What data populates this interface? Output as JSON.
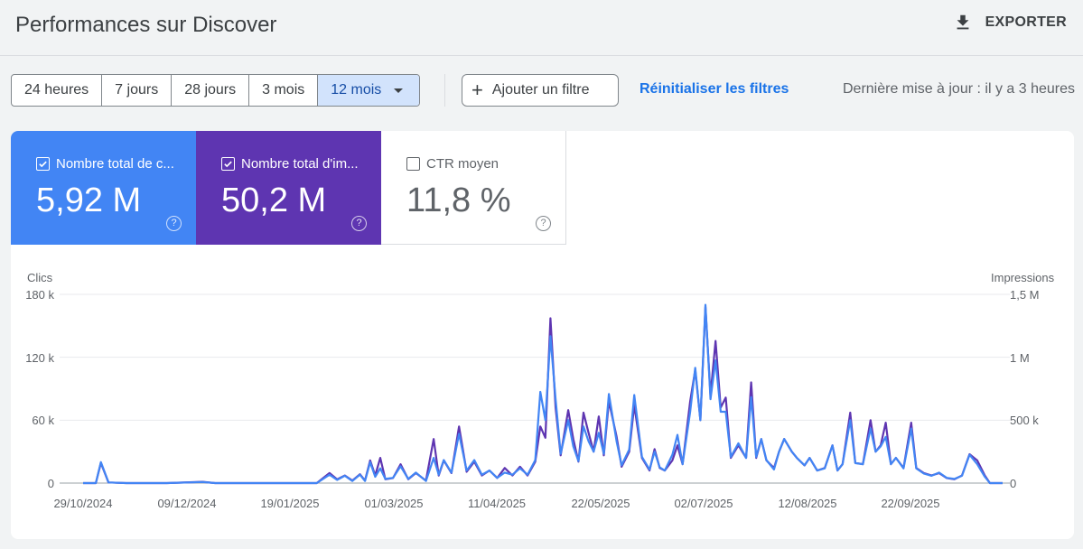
{
  "header": {
    "title": "Performances sur Discover",
    "export_label": "EXPORTER"
  },
  "toolbar": {
    "ranges": [
      "24 heures",
      "7 jours",
      "28 jours",
      "3 mois",
      "12 mois"
    ],
    "active_range": "12 mois",
    "add_filter": "Ajouter un filtre",
    "reset_filters": "Réinitialiser les filtres",
    "last_update": "Dernière mise à jour : il y a 3 heures"
  },
  "cards": {
    "clicks": {
      "label": "Nombre total de c...",
      "value": "5,92 M",
      "checked": true,
      "color": "#4285f4"
    },
    "impressions": {
      "label": "Nombre total d'im...",
      "value": "50,2 M",
      "checked": true,
      "color": "#5e35b1"
    },
    "ctr": {
      "label": "CTR moyen",
      "value": "11,8 %",
      "checked": false
    }
  },
  "chart_data": {
    "type": "line",
    "y_left_label": "Clics",
    "y_right_label": "Impressions",
    "y_left_ticks": [
      "180 k",
      "120 k",
      "60 k",
      "0"
    ],
    "y_right_ticks": [
      "1,5 M",
      "1 M",
      "500 k",
      "0"
    ],
    "y_left_range": [
      0,
      180000
    ],
    "y_right_range": [
      0,
      1500000
    ],
    "x_ticks": [
      "29/10/2024",
      "09/12/2024",
      "19/01/2025",
      "01/03/2025",
      "11/04/2025",
      "22/05/2025",
      "02/07/2025",
      "12/08/2025",
      "22/09/2025"
    ],
    "x_range": [
      "2024-10-29",
      "2025-10-26"
    ],
    "series": [
      {
        "name": "Impressions",
        "axis": "right",
        "color": "#5e35b1",
        "points": [
          [
            "2024-10-29",
            0
          ],
          [
            "2024-11-03",
            0
          ],
          [
            "2024-11-05",
            160000
          ],
          [
            "2024-11-08",
            5000
          ],
          [
            "2024-11-15",
            0
          ],
          [
            "2024-12-01",
            0
          ],
          [
            "2024-12-15",
            10000
          ],
          [
            "2024-12-20",
            0
          ],
          [
            "2025-01-10",
            0
          ],
          [
            "2025-01-29",
            0
          ],
          [
            "2025-02-03",
            80000
          ],
          [
            "2025-02-06",
            30000
          ],
          [
            "2025-02-09",
            60000
          ],
          [
            "2025-02-12",
            20000
          ],
          [
            "2025-02-15",
            70000
          ],
          [
            "2025-02-17",
            20000
          ],
          [
            "2025-02-19",
            180000
          ],
          [
            "2025-02-21",
            60000
          ],
          [
            "2025-02-23",
            200000
          ],
          [
            "2025-02-25",
            30000
          ],
          [
            "2025-02-28",
            40000
          ],
          [
            "2025-03-03",
            150000
          ],
          [
            "2025-03-06",
            30000
          ],
          [
            "2025-03-09",
            80000
          ],
          [
            "2025-03-13",
            20000
          ],
          [
            "2025-03-16",
            350000
          ],
          [
            "2025-03-18",
            60000
          ],
          [
            "2025-03-20",
            180000
          ],
          [
            "2025-03-23",
            80000
          ],
          [
            "2025-03-26",
            450000
          ],
          [
            "2025-03-29",
            90000
          ],
          [
            "2025-04-01",
            170000
          ],
          [
            "2025-04-04",
            60000
          ],
          [
            "2025-04-07",
            100000
          ],
          [
            "2025-04-10",
            40000
          ],
          [
            "2025-04-13",
            120000
          ],
          [
            "2025-04-16",
            60000
          ],
          [
            "2025-04-19",
            130000
          ],
          [
            "2025-04-22",
            60000
          ],
          [
            "2025-04-25",
            170000
          ],
          [
            "2025-04-27",
            450000
          ],
          [
            "2025-04-29",
            360000
          ],
          [
            "2025-05-01",
            1310000
          ],
          [
            "2025-05-03",
            600000
          ],
          [
            "2025-05-05",
            220000
          ],
          [
            "2025-05-08",
            580000
          ],
          [
            "2025-05-10",
            350000
          ],
          [
            "2025-05-12",
            170000
          ],
          [
            "2025-05-14",
            560000
          ],
          [
            "2025-05-16",
            400000
          ],
          [
            "2025-05-18",
            250000
          ],
          [
            "2025-05-20",
            530000
          ],
          [
            "2025-05-22",
            220000
          ],
          [
            "2025-05-24",
            650000
          ],
          [
            "2025-05-27",
            370000
          ],
          [
            "2025-05-29",
            130000
          ],
          [
            "2025-06-01",
            250000
          ],
          [
            "2025-06-03",
            620000
          ],
          [
            "2025-06-06",
            200000
          ],
          [
            "2025-06-09",
            100000
          ],
          [
            "2025-06-11",
            270000
          ],
          [
            "2025-06-13",
            120000
          ],
          [
            "2025-06-15",
            100000
          ],
          [
            "2025-06-18",
            180000
          ],
          [
            "2025-06-20",
            300000
          ],
          [
            "2025-06-22",
            150000
          ],
          [
            "2025-06-25",
            650000
          ],
          [
            "2025-06-27",
            900000
          ],
          [
            "2025-06-29",
            500000
          ],
          [
            "2025-07-01",
            1400000
          ],
          [
            "2025-07-03",
            700000
          ],
          [
            "2025-07-05",
            1130000
          ],
          [
            "2025-07-07",
            600000
          ],
          [
            "2025-07-09",
            680000
          ],
          [
            "2025-07-11",
            200000
          ],
          [
            "2025-07-14",
            300000
          ],
          [
            "2025-07-17",
            200000
          ],
          [
            "2025-07-19",
            800000
          ],
          [
            "2025-07-21",
            200000
          ],
          [
            "2025-07-23",
            350000
          ],
          [
            "2025-07-25",
            180000
          ],
          [
            "2025-07-28",
            120000
          ],
          [
            "2025-07-30",
            250000
          ],
          [
            "2025-08-01",
            350000
          ],
          [
            "2025-08-04",
            250000
          ],
          [
            "2025-08-06",
            200000
          ],
          [
            "2025-08-09",
            140000
          ],
          [
            "2025-08-11",
            200000
          ],
          [
            "2025-08-14",
            100000
          ],
          [
            "2025-08-17",
            120000
          ],
          [
            "2025-08-20",
            300000
          ],
          [
            "2025-08-22",
            100000
          ],
          [
            "2025-08-24",
            150000
          ],
          [
            "2025-08-27",
            560000
          ],
          [
            "2025-08-29",
            160000
          ],
          [
            "2025-09-01",
            150000
          ],
          [
            "2025-09-04",
            500000
          ],
          [
            "2025-09-06",
            250000
          ],
          [
            "2025-09-08",
            300000
          ],
          [
            "2025-09-10",
            480000
          ],
          [
            "2025-09-12",
            150000
          ],
          [
            "2025-09-14",
            200000
          ],
          [
            "2025-09-17",
            120000
          ],
          [
            "2025-09-20",
            480000
          ],
          [
            "2025-09-22",
            120000
          ],
          [
            "2025-09-25",
            80000
          ],
          [
            "2025-09-28",
            60000
          ],
          [
            "2025-10-01",
            80000
          ],
          [
            "2025-10-04",
            40000
          ],
          [
            "2025-10-07",
            30000
          ],
          [
            "2025-10-10",
            60000
          ],
          [
            "2025-10-13",
            230000
          ],
          [
            "2025-10-16",
            180000
          ],
          [
            "2025-10-19",
            60000
          ],
          [
            "2025-10-21",
            0
          ],
          [
            "2025-10-26",
            0
          ]
        ]
      },
      {
        "name": "Clics",
        "axis": "left",
        "color": "#4285f4",
        "points": [
          [
            "2024-10-29",
            0
          ],
          [
            "2024-11-03",
            0
          ],
          [
            "2024-11-05",
            20000
          ],
          [
            "2024-11-08",
            600
          ],
          [
            "2024-11-15",
            0
          ],
          [
            "2024-12-01",
            0
          ],
          [
            "2024-12-15",
            1000
          ],
          [
            "2024-12-20",
            0
          ],
          [
            "2025-01-10",
            0
          ],
          [
            "2025-01-29",
            0
          ],
          [
            "2025-02-03",
            8000
          ],
          [
            "2025-02-06",
            3000
          ],
          [
            "2025-02-09",
            7000
          ],
          [
            "2025-02-12",
            2000
          ],
          [
            "2025-02-15",
            8000
          ],
          [
            "2025-02-17",
            2000
          ],
          [
            "2025-02-19",
            20000
          ],
          [
            "2025-02-21",
            6000
          ],
          [
            "2025-02-23",
            14000
          ],
          [
            "2025-02-25",
            4000
          ],
          [
            "2025-02-28",
            5000
          ],
          [
            "2025-03-03",
            16000
          ],
          [
            "2025-03-06",
            4000
          ],
          [
            "2025-03-09",
            10000
          ],
          [
            "2025-03-13",
            2000
          ],
          [
            "2025-03-16",
            24000
          ],
          [
            "2025-03-18",
            8000
          ],
          [
            "2025-03-20",
            22000
          ],
          [
            "2025-03-23",
            10000
          ],
          [
            "2025-03-26",
            47000
          ],
          [
            "2025-03-29",
            12000
          ],
          [
            "2025-04-01",
            22000
          ],
          [
            "2025-04-04",
            8000
          ],
          [
            "2025-04-07",
            12000
          ],
          [
            "2025-04-10",
            5000
          ],
          [
            "2025-04-13",
            10000
          ],
          [
            "2025-04-16",
            8000
          ],
          [
            "2025-04-19",
            14000
          ],
          [
            "2025-04-22",
            8000
          ],
          [
            "2025-04-25",
            22000
          ],
          [
            "2025-04-27",
            87000
          ],
          [
            "2025-04-29",
            60000
          ],
          [
            "2025-05-01",
            140000
          ],
          [
            "2025-05-03",
            80000
          ],
          [
            "2025-05-05",
            28000
          ],
          [
            "2025-05-08",
            60000
          ],
          [
            "2025-05-10",
            35000
          ],
          [
            "2025-05-12",
            21000
          ],
          [
            "2025-05-14",
            54000
          ],
          [
            "2025-05-16",
            40000
          ],
          [
            "2025-05-18",
            30000
          ],
          [
            "2025-05-20",
            48000
          ],
          [
            "2025-05-22",
            28000
          ],
          [
            "2025-05-24",
            85000
          ],
          [
            "2025-05-27",
            40000
          ],
          [
            "2025-05-29",
            17000
          ],
          [
            "2025-06-01",
            32000
          ],
          [
            "2025-06-03",
            84000
          ],
          [
            "2025-06-06",
            25000
          ],
          [
            "2025-06-09",
            13000
          ],
          [
            "2025-06-11",
            30000
          ],
          [
            "2025-06-13",
            15000
          ],
          [
            "2025-06-15",
            12000
          ],
          [
            "2025-06-18",
            27000
          ],
          [
            "2025-06-20",
            46000
          ],
          [
            "2025-06-22",
            18000
          ],
          [
            "2025-06-25",
            68000
          ],
          [
            "2025-06-27",
            110000
          ],
          [
            "2025-06-29",
            60000
          ],
          [
            "2025-07-01",
            170000
          ],
          [
            "2025-07-03",
            80000
          ],
          [
            "2025-07-05",
            117000
          ],
          [
            "2025-07-07",
            68000
          ],
          [
            "2025-07-09",
            68000
          ],
          [
            "2025-07-11",
            25000
          ],
          [
            "2025-07-14",
            38000
          ],
          [
            "2025-07-17",
            24000
          ],
          [
            "2025-07-19",
            82000
          ],
          [
            "2025-07-21",
            25000
          ],
          [
            "2025-07-23",
            42000
          ],
          [
            "2025-07-25",
            22000
          ],
          [
            "2025-07-28",
            13000
          ],
          [
            "2025-07-30",
            30000
          ],
          [
            "2025-08-01",
            42000
          ],
          [
            "2025-08-04",
            30000
          ],
          [
            "2025-08-06",
            24000
          ],
          [
            "2025-08-09",
            17000
          ],
          [
            "2025-08-11",
            24000
          ],
          [
            "2025-08-14",
            12000
          ],
          [
            "2025-08-17",
            14000
          ],
          [
            "2025-08-20",
            36000
          ],
          [
            "2025-08-22",
            12000
          ],
          [
            "2025-08-24",
            18000
          ],
          [
            "2025-08-27",
            60000
          ],
          [
            "2025-08-29",
            19000
          ],
          [
            "2025-09-01",
            18000
          ],
          [
            "2025-09-04",
            52000
          ],
          [
            "2025-09-06",
            30000
          ],
          [
            "2025-09-08",
            35000
          ],
          [
            "2025-09-10",
            44000
          ],
          [
            "2025-09-12",
            18000
          ],
          [
            "2025-09-14",
            24000
          ],
          [
            "2025-09-17",
            14000
          ],
          [
            "2025-09-20",
            52000
          ],
          [
            "2025-09-22",
            14000
          ],
          [
            "2025-09-25",
            9000
          ],
          [
            "2025-09-28",
            7000
          ],
          [
            "2025-10-01",
            10000
          ],
          [
            "2025-10-04",
            5000
          ],
          [
            "2025-10-07",
            4000
          ],
          [
            "2025-10-10",
            7000
          ],
          [
            "2025-10-13",
            27000
          ],
          [
            "2025-10-16",
            18000
          ],
          [
            "2025-10-19",
            6000
          ],
          [
            "2025-10-21",
            0
          ],
          [
            "2025-10-26",
            0
          ]
        ]
      }
    ]
  }
}
